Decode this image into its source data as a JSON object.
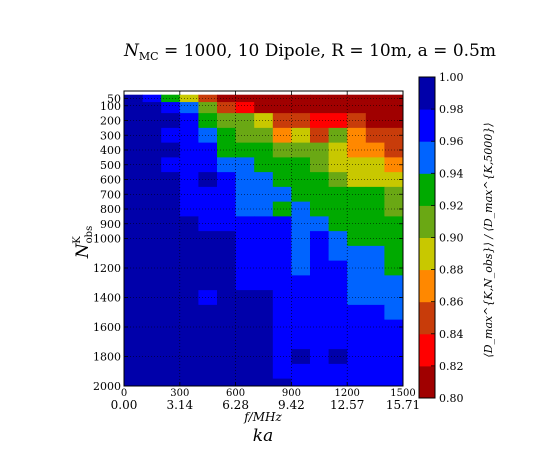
{
  "chart_data": {
    "type": "heatmap",
    "title_parts": {
      "n": "N",
      "sub": "MC",
      "rest": " = 1000, 10 Dipole, R = 10m, a = 0.5m"
    },
    "x": {
      "label": "f/MHz",
      "label_secondary": "ka",
      "range": [
        0,
        1500
      ],
      "ticks": [
        0,
        300,
        600,
        900,
        1200,
        1500
      ],
      "tick_labels": [
        "0",
        "300",
        "600",
        "900",
        "1200",
        "1500"
      ],
      "secondary_tick_labels": [
        "0.00",
        "3.14",
        "6.28",
        "9.42",
        "12.57",
        "15.71"
      ]
    },
    "y": {
      "label_n": "N",
      "label_sup": "K",
      "label_sub": "obs",
      "range": [
        0,
        2000
      ],
      "ticks": [
        50,
        100,
        200,
        300,
        400,
        500,
        600,
        700,
        800,
        900,
        1000,
        1200,
        1400,
        1600,
        1800,
        2000
      ],
      "inverted": true
    },
    "colorbar": {
      "label": "⟨D_max^{K,N_obs}⟩ / ⟨D_max^{K,5000}⟩",
      "range": [
        0.8,
        1.0
      ],
      "ticks": [
        "1.00",
        "0.98",
        "0.96",
        "0.94",
        "0.92",
        "0.90",
        "0.88",
        "0.86",
        "0.84",
        "0.82",
        "0.80"
      ],
      "colors": [
        "#a00000",
        "#ff0000",
        "#c83c0a",
        "#ff8800",
        "#c8c800",
        "#6aa814",
        "#00aa00",
        "#0064ff",
        "#0000ff",
        "#0000aa"
      ]
    },
    "x_bins": 15,
    "y_rows": [
      50,
      100,
      200,
      300,
      400,
      500,
      600,
      700,
      800,
      900,
      1000,
      1100,
      1200,
      1300,
      1400,
      1500,
      1600,
      1700,
      1800,
      1900,
      2000
    ],
    "values": [
      [
        0.99,
        0.97,
        0.93,
        0.89,
        0.85,
        0.81,
        0.81,
        0.81,
        0.81,
        0.81,
        0.81,
        0.81,
        0.81,
        0.81,
        0.81
      ],
      [
        0.99,
        0.99,
        0.97,
        0.95,
        0.91,
        0.85,
        0.84,
        0.81,
        0.81,
        0.81,
        0.81,
        0.81,
        0.81,
        0.81,
        0.81
      ],
      [
        0.99,
        0.99,
        0.99,
        0.97,
        0.93,
        0.91,
        0.91,
        0.89,
        0.85,
        0.85,
        0.83,
        0.83,
        0.85,
        0.81,
        0.81
      ],
      [
        0.99,
        0.99,
        0.97,
        0.97,
        0.95,
        0.93,
        0.91,
        0.91,
        0.87,
        0.89,
        0.85,
        0.91,
        0.87,
        0.85,
        0.85
      ],
      [
        0.99,
        0.99,
        0.99,
        0.97,
        0.97,
        0.93,
        0.93,
        0.93,
        0.91,
        0.91,
        0.91,
        0.89,
        0.87,
        0.87,
        0.85
      ],
      [
        0.99,
        0.99,
        0.97,
        0.97,
        0.97,
        0.95,
        0.95,
        0.93,
        0.93,
        0.93,
        0.91,
        0.89,
        0.89,
        0.89,
        0.87
      ],
      [
        0.99,
        0.99,
        0.99,
        0.97,
        0.99,
        0.97,
        0.95,
        0.95,
        0.93,
        0.93,
        0.93,
        0.91,
        0.89,
        0.89,
        0.89
      ],
      [
        0.99,
        0.99,
        0.99,
        0.97,
        0.97,
        0.97,
        0.95,
        0.95,
        0.95,
        0.93,
        0.93,
        0.93,
        0.93,
        0.93,
        0.91
      ],
      [
        0.99,
        0.99,
        0.99,
        0.97,
        0.97,
        0.97,
        0.95,
        0.95,
        0.93,
        0.95,
        0.93,
        0.93,
        0.93,
        0.93,
        0.91
      ],
      [
        0.99,
        0.99,
        0.99,
        0.99,
        0.97,
        0.97,
        0.97,
        0.97,
        0.97,
        0.95,
        0.95,
        0.93,
        0.93,
        0.93,
        0.93
      ],
      [
        0.99,
        0.99,
        0.99,
        0.99,
        0.99,
        0.99,
        0.97,
        0.97,
        0.97,
        0.95,
        0.97,
        0.95,
        0.93,
        0.93,
        0.93
      ],
      [
        0.99,
        0.99,
        0.99,
        0.99,
        0.99,
        0.99,
        0.97,
        0.97,
        0.97,
        0.95,
        0.97,
        0.95,
        0.95,
        0.95,
        0.93
      ],
      [
        0.99,
        0.99,
        0.99,
        0.99,
        0.99,
        0.99,
        0.97,
        0.97,
        0.97,
        0.95,
        0.97,
        0.97,
        0.95,
        0.95,
        0.93
      ],
      [
        0.99,
        0.99,
        0.99,
        0.99,
        0.99,
        0.99,
        0.97,
        0.97,
        0.97,
        0.97,
        0.97,
        0.97,
        0.95,
        0.95,
        0.95
      ],
      [
        0.99,
        0.99,
        0.99,
        0.99,
        0.97,
        0.99,
        0.99,
        0.99,
        0.97,
        0.97,
        0.97,
        0.97,
        0.95,
        0.95,
        0.95
      ],
      [
        0.99,
        0.99,
        0.99,
        0.99,
        0.99,
        0.99,
        0.99,
        0.99,
        0.97,
        0.97,
        0.97,
        0.97,
        0.97,
        0.97,
        0.95
      ],
      [
        0.99,
        0.99,
        0.99,
        0.99,
        0.99,
        0.99,
        0.99,
        0.99,
        0.97,
        0.97,
        0.97,
        0.97,
        0.97,
        0.97,
        0.97
      ],
      [
        0.99,
        0.99,
        0.99,
        0.99,
        0.99,
        0.99,
        0.99,
        0.99,
        0.97,
        0.97,
        0.97,
        0.97,
        0.97,
        0.97,
        0.97
      ],
      [
        0.99,
        0.99,
        0.99,
        0.99,
        0.99,
        0.99,
        0.99,
        0.99,
        0.97,
        0.99,
        0.97,
        0.99,
        0.97,
        0.97,
        0.97
      ],
      [
        0.99,
        0.99,
        0.99,
        0.99,
        0.99,
        0.99,
        0.99,
        0.99,
        0.97,
        0.97,
        0.97,
        0.97,
        0.97,
        0.97,
        0.97
      ],
      [
        0.99,
        0.99,
        0.99,
        0.99,
        0.99,
        0.99,
        0.99,
        0.99,
        0.99,
        0.97,
        0.97,
        0.97,
        0.97,
        0.97,
        0.97
      ]
    ]
  }
}
